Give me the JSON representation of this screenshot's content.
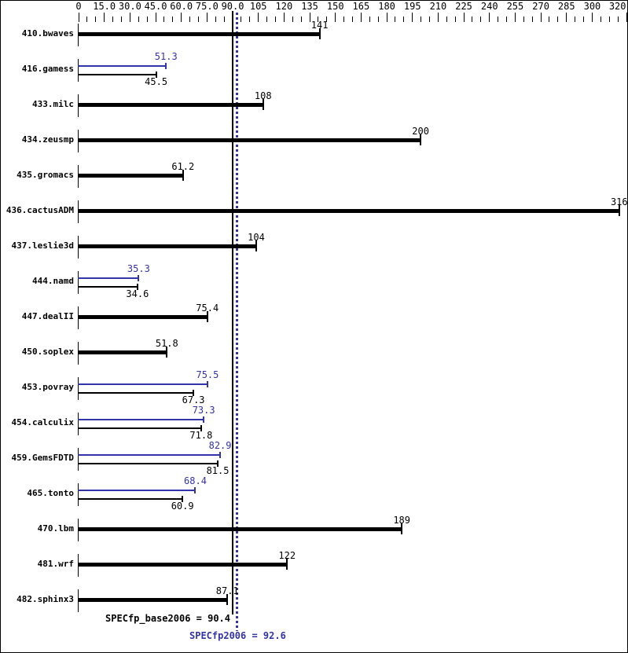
{
  "chart_data": {
    "type": "bar",
    "orientation": "horizontal",
    "colors": {
      "base": "#000000",
      "peak": "#3333aa"
    },
    "axis": {
      "min": 0,
      "max": 320,
      "minor_step": 5,
      "major_ticks": [
        {
          "v": 0,
          "label": "0"
        },
        {
          "v": 15,
          "label": "15.0"
        },
        {
          "v": 30,
          "label": "30.0"
        },
        {
          "v": 45,
          "label": "45.0"
        },
        {
          "v": 60,
          "label": "60.0"
        },
        {
          "v": 75,
          "label": "75.0"
        },
        {
          "v": 90,
          "label": "90.0"
        },
        {
          "v": 105,
          "label": "105"
        },
        {
          "v": 120,
          "label": "120"
        },
        {
          "v": 135,
          "label": "135"
        },
        {
          "v": 150,
          "label": "150"
        },
        {
          "v": 165,
          "label": "165"
        },
        {
          "v": 180,
          "label": "180"
        },
        {
          "v": 195,
          "label": "195"
        },
        {
          "v": 210,
          "label": "210"
        },
        {
          "v": 225,
          "label": "225"
        },
        {
          "v": 240,
          "label": "240"
        },
        {
          "v": 255,
          "label": "255"
        },
        {
          "v": 270,
          "label": "270"
        },
        {
          "v": 285,
          "label": "285"
        },
        {
          "v": 300,
          "label": "300"
        },
        {
          "v": 320,
          "label": "320"
        }
      ]
    },
    "benchmarks": [
      {
        "name": "410.bwaves",
        "base": 141,
        "base_label": "141",
        "peak": null,
        "peak_label": null
      },
      {
        "name": "416.gamess",
        "base": 45.5,
        "base_label": "45.5",
        "peak": 51.3,
        "peak_label": "51.3"
      },
      {
        "name": "433.milc",
        "base": 108,
        "base_label": "108",
        "peak": null,
        "peak_label": null
      },
      {
        "name": "434.zeusmp",
        "base": 200,
        "base_label": "200",
        "peak": null,
        "peak_label": null
      },
      {
        "name": "435.gromacs",
        "base": 61.2,
        "base_label": "61.2",
        "peak": null,
        "peak_label": null
      },
      {
        "name": "436.cactusADM",
        "base": 316,
        "base_label": "316",
        "peak": null,
        "peak_label": null
      },
      {
        "name": "437.leslie3d",
        "base": 104,
        "base_label": "104",
        "peak": null,
        "peak_label": null
      },
      {
        "name": "444.namd",
        "base": 34.6,
        "base_label": "34.6",
        "peak": 35.3,
        "peak_label": "35.3"
      },
      {
        "name": "447.dealII",
        "base": 75.4,
        "base_label": "75.4",
        "peak": null,
        "peak_label": null
      },
      {
        "name": "450.soplex",
        "base": 51.8,
        "base_label": "51.8",
        "peak": null,
        "peak_label": null
      },
      {
        "name": "453.povray",
        "base": 67.3,
        "base_label": "67.3",
        "peak": 75.5,
        "peak_label": "75.5"
      },
      {
        "name": "454.calculix",
        "base": 71.8,
        "base_label": "71.8",
        "peak": 73.3,
        "peak_label": "73.3"
      },
      {
        "name": "459.GemsFDTD",
        "base": 81.5,
        "base_label": "81.5",
        "peak": 82.9,
        "peak_label": "82.9"
      },
      {
        "name": "465.tonto",
        "base": 60.9,
        "base_label": "60.9",
        "peak": 68.4,
        "peak_label": "68.4"
      },
      {
        "name": "470.lbm",
        "base": 189,
        "base_label": "189",
        "peak": null,
        "peak_label": null
      },
      {
        "name": "481.wrf",
        "base": 122,
        "base_label": "122",
        "peak": null,
        "peak_label": null
      },
      {
        "name": "482.sphinx3",
        "base": 87.1,
        "base_label": "87.1",
        "peak": null,
        "peak_label": null
      }
    ],
    "summary": {
      "base": {
        "label": "SPECfp_base2006 = 90.4",
        "value": 90.4
      },
      "peak": {
        "label": "SPECfp2006 = 92.6",
        "value": 92.6
      }
    }
  }
}
